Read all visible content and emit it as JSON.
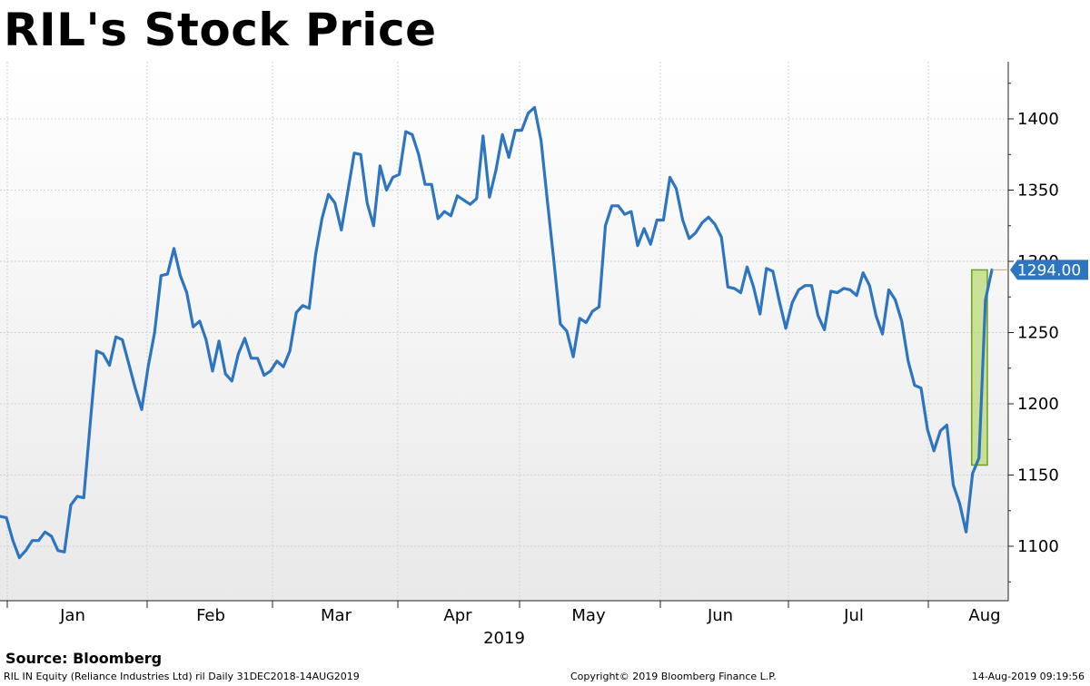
{
  "title": "RIL's Stock Price",
  "source": "Source: Bloomberg",
  "footer": {
    "left": "RIL IN Equity (Reliance Industries Ltd) ril  Daily 31DEC2018-14AUG2019",
    "middle": "Copyright© 2019 Bloomberg Finance L.P.",
    "right": "14-Aug-2019 09:19:56"
  },
  "colors": {
    "line": "#2e75c0",
    "highlight_fill": "#a6d14a",
    "highlight_stroke": "#6aa21c",
    "last_label_bg": "#2e75c0"
  },
  "chart_data": {
    "type": "line",
    "title": "RIL's Stock Price",
    "xlabel": "2019",
    "ylabel": "",
    "x_tick_labels": [
      "Jan",
      "Feb",
      "Mar",
      "Apr",
      "May",
      "Jun",
      "Jul",
      "Aug"
    ],
    "y_ticks": [
      1100,
      1150,
      1200,
      1250,
      1300,
      1350,
      1400
    ],
    "ylim": [
      1062,
      1437
    ],
    "grid": true,
    "last_value_label": "1294.00",
    "series": [
      {
        "values": [
          1121,
          1120,
          1104,
          1092,
          1097,
          1104,
          1104,
          1110,
          1107,
          1097,
          1096,
          1129,
          1135,
          1134,
          1186,
          1237,
          1235,
          1227,
          1247,
          1245,
          1228,
          1211,
          1196,
          1226,
          1250,
          1290,
          1291,
          1309,
          1290,
          1278,
          1254,
          1258,
          1245,
          1223,
          1244,
          1221,
          1216,
          1235,
          1246,
          1232,
          1232,
          1220,
          1223,
          1230,
          1226,
          1237,
          1264,
          1269,
          1267,
          1305,
          1330,
          1347,
          1341,
          1322,
          1349,
          1376,
          1375,
          1341,
          1325,
          1367,
          1350,
          1359,
          1361,
          1391,
          1389,
          1375,
          1354,
          1354,
          1330,
          1335,
          1332,
          1346,
          1343,
          1340,
          1344,
          1388,
          1345,
          1364,
          1389,
          1373,
          1392,
          1392,
          1404,
          1408,
          1385,
          1342,
          1300,
          1256,
          1251,
          1233,
          1260,
          1257,
          1265,
          1268,
          1325,
          1339,
          1339,
          1333,
          1335,
          1311,
          1323,
          1312,
          1329,
          1329,
          1359,
          1351,
          1329,
          1316,
          1320,
          1327,
          1331,
          1326,
          1317,
          1282,
          1281,
          1278,
          1296,
          1282,
          1263,
          1295,
          1293,
          1272,
          1253,
          1271,
          1280,
          1283,
          1283,
          1262,
          1252,
          1279,
          1278,
          1281,
          1280,
          1276,
          1292,
          1283,
          1262,
          1249,
          1280,
          1273,
          1258,
          1230,
          1213,
          1211,
          1182,
          1167,
          1181,
          1185,
          1143,
          1130,
          1110,
          1151,
          1162,
          1273,
          1294
        ]
      }
    ],
    "highlight": {
      "label": "",
      "x_start_index": 151,
      "x_end_index": 154,
      "y_low": 1157,
      "y_high": 1294
    }
  }
}
